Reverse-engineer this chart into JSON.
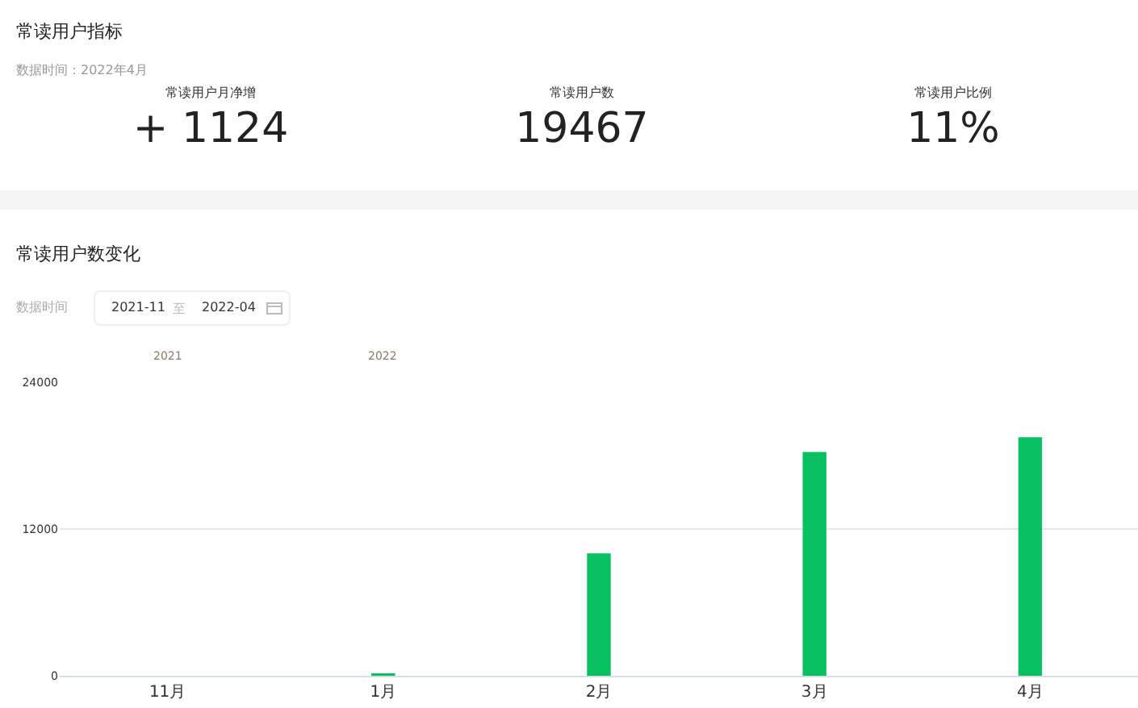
{
  "chart_data": [
    {
      "type": "other",
      "title": "常读用户指标",
      "subtitle": "数据时间：2022年4月",
      "annotations": [
        "常读用户月净增",
        "+ 1124",
        "常读用户数",
        "19467",
        "常读用户比例",
        "11%"
      ]
    },
    {
      "type": "bar",
      "title": "常读用户数变化",
      "categories": [
        "11月",
        "1月",
        "2月",
        "3月",
        "4月"
      ],
      "values": [
        0,
        200,
        10000,
        18300,
        19500
      ],
      "color": "#07c160",
      "ylim": [
        0,
        24000
      ],
      "yticks": [
        0,
        12000,
        24000
      ],
      "grid": "y",
      "annotations": [
        "数据时间",
        "2021-11",
        "至",
        "2022-04",
        "2021",
        "2022"
      ]
    }
  ]
}
